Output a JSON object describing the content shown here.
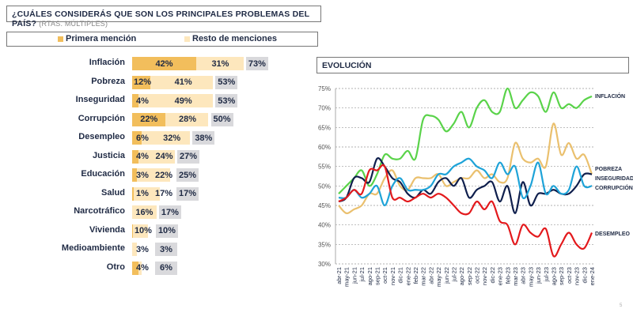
{
  "title": {
    "main": "¿CUÁLES CONSIDERÁS QUE SON LOS PRINCIPALES PROBLEMAS DEL PAÍS?",
    "sub": "(RTAS. MÚLTIPLES)"
  },
  "colors": {
    "primera": "#f2be5c",
    "resto": "#fde7bd",
    "total": "#d9d9dc",
    "inflacion": "#5ad34a",
    "pobreza": "#eac06e",
    "inseguridad": "#0f1f4d",
    "corrupcion": "#1ea3d8",
    "desempleo": "#e3191c"
  },
  "chart_data": [
    {
      "type": "bar",
      "stacked": true,
      "legend": [
        "Primera mención",
        "Resto de menciones"
      ],
      "legend_position": "top",
      "categories": [
        "Inflación",
        "Pobreza",
        "Inseguridad",
        "Corrupción",
        "Desempleo",
        "Justicia",
        "Educación",
        "Salud",
        "Narcotráfico",
        "Vivienda",
        "Medioambiente",
        "Otro"
      ],
      "primera": [
        "42%",
        "12%",
        "4%",
        "22%",
        "6%",
        "4%",
        "3%",
        "1%",
        "",
        "",
        "",
        "4%"
      ],
      "primera_values": [
        42,
        12,
        4,
        22,
        6,
        4,
        3,
        1,
        0,
        0.5,
        0,
        4
      ],
      "resto": [
        "31%",
        "41%",
        "49%",
        "28%",
        "32%",
        "24%",
        "22%",
        "17%",
        "16%",
        "10%",
        "3%",
        ""
      ],
      "resto_values": [
        31,
        41,
        49,
        28,
        32,
        24,
        22,
        17,
        16,
        10,
        3,
        2
      ],
      "total": [
        "73%",
        "53%",
        "53%",
        "50%",
        "38%",
        "27%",
        "25%",
        "17%",
        "17%",
        "10%",
        "3%",
        "6%"
      ]
    },
    {
      "type": "line",
      "title": "EVOLUCIÓN",
      "ylim": [
        30,
        75
      ],
      "grid": true,
      "yticks": [
        "30%",
        "35%",
        "40%",
        "45%",
        "50%",
        "55%",
        "60%",
        "65%",
        "70%",
        "75%"
      ],
      "x": [
        "abr-21",
        "may-21",
        "jun-21",
        "jul-21",
        "ago-21",
        "sep-21",
        "oct-21",
        "nov-21",
        "dic-21",
        "ene-22",
        "feb-22",
        "mar-22",
        "abr-22",
        "may-22",
        "jun-22",
        "jul-22",
        "ago-22",
        "sep-22",
        "oct-22",
        "nov-22",
        "dic-22",
        "ene-23",
        "feb-23",
        "mar-23",
        "abr-23",
        "may-23",
        "jun-23",
        "jul-23",
        "ago-23",
        "sep-23",
        "oct-23",
        "nov-23",
        "dic-23",
        "ene-24"
      ],
      "series": [
        {
          "name": "INFLACIÓN",
          "key": "inflacion",
          "values": [
            48,
            50,
            52,
            54,
            50,
            53,
            58,
            57,
            57,
            59,
            57,
            67,
            68,
            67,
            64,
            66,
            69,
            65,
            70,
            72,
            69,
            69,
            75,
            70,
            72,
            74,
            73,
            69,
            74,
            70,
            71,
            70,
            72,
            73
          ]
        },
        {
          "name": "POBREZA",
          "key": "pobreza",
          "values": [
            45,
            43,
            44,
            45,
            48,
            48,
            52,
            54,
            50,
            49,
            52,
            52,
            52,
            53,
            50,
            51,
            52,
            52,
            54,
            52,
            53,
            51,
            52,
            61,
            57,
            56,
            57,
            55,
            66,
            58,
            61,
            57,
            58,
            53
          ]
        },
        {
          "name": "INSEGURIDAD",
          "key": "inseguridad",
          "values": [
            46,
            47,
            52,
            52,
            51,
            57,
            55,
            52,
            51,
            48,
            47,
            49,
            48,
            51,
            52,
            50,
            52,
            47,
            49,
            50,
            51,
            46,
            50,
            43,
            51,
            45,
            48,
            48,
            49,
            48,
            48,
            50,
            53,
            53
          ]
        },
        {
          "name": "CORRUPCIÓN",
          "key": "corrupcion",
          "values": [
            47,
            47,
            49,
            47,
            48,
            50,
            45,
            50,
            52,
            49,
            49,
            49,
            50,
            53,
            53,
            55,
            56,
            57,
            55,
            54,
            52,
            56,
            53,
            55,
            47,
            50,
            56,
            48,
            50,
            48,
            49,
            55,
            50,
            50
          ]
        },
        {
          "name": "DESEMPLEO",
          "key": "desempleo",
          "values": [
            46,
            47,
            49,
            48,
            54,
            54,
            55,
            47,
            47,
            46,
            47,
            48,
            47,
            48,
            47,
            45,
            43,
            43,
            46,
            44,
            46,
            41,
            40,
            35,
            40,
            38,
            37,
            39,
            32,
            35,
            38,
            35,
            34,
            38
          ]
        }
      ]
    }
  ],
  "page_number": "5"
}
